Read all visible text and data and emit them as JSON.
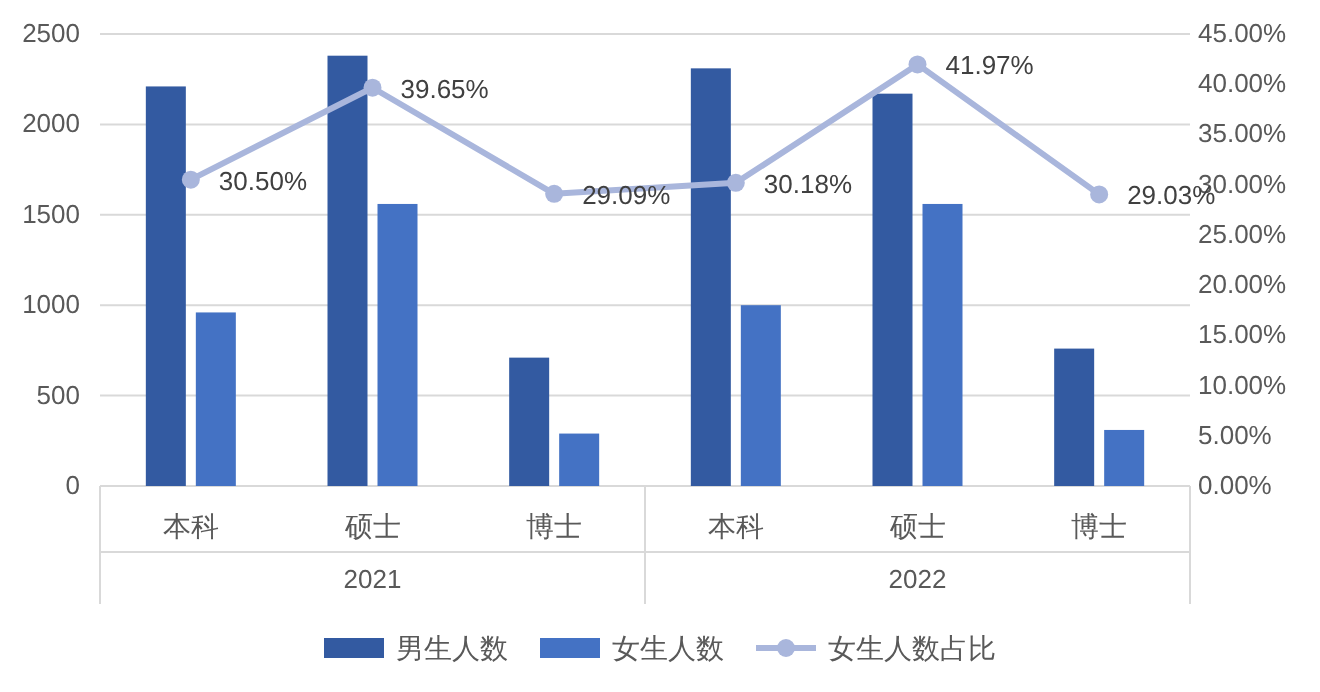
{
  "chart_data": {
    "type": "bar",
    "categories": [
      "本科",
      "硕士",
      "博士",
      "本科",
      "硕士",
      "博士"
    ],
    "annotations": [
      "2021",
      "2022"
    ],
    "series": [
      {
        "name": "男生人数",
        "color": "#335aa1",
        "values": [
          2210,
          2380,
          710,
          2310,
          2170,
          760
        ]
      },
      {
        "name": "女生人数",
        "color": "#4472c4",
        "values": [
          960,
          1560,
          290,
          1000,
          1560,
          310
        ]
      },
      {
        "name": "女生人数占比",
        "type": "line",
        "axis": "y2",
        "color": "#a9b6dc",
        "marker": "circle",
        "values": [
          30.5,
          39.65,
          29.09,
          30.18,
          41.97,
          29.03
        ],
        "value_labels": [
          "30.50%",
          "39.65%",
          "29.09%",
          "30.18%",
          "41.97%",
          "29.03%"
        ]
      }
    ],
    "ylim": [
      0,
      2500
    ],
    "yticks": [
      0,
      500,
      1000,
      1500,
      2000,
      2500
    ],
    "y2lim": [
      0,
      45
    ],
    "y2ticks": [
      {
        "value": 0,
        "label": "0.00%"
      },
      {
        "value": 5,
        "label": "5.00%"
      },
      {
        "value": 10,
        "label": "10.00%"
      },
      {
        "value": 15,
        "label": "15.00%"
      },
      {
        "value": 20,
        "label": "20.00%"
      },
      {
        "value": 25,
        "label": "25.00%"
      },
      {
        "value": 30,
        "label": "30.00%"
      },
      {
        "value": 35,
        "label": "35.00%"
      },
      {
        "value": 40,
        "label": "40.00%"
      },
      {
        "value": 45,
        "label": "45.00%"
      }
    ],
    "grid": "y",
    "legend": "bottom"
  }
}
